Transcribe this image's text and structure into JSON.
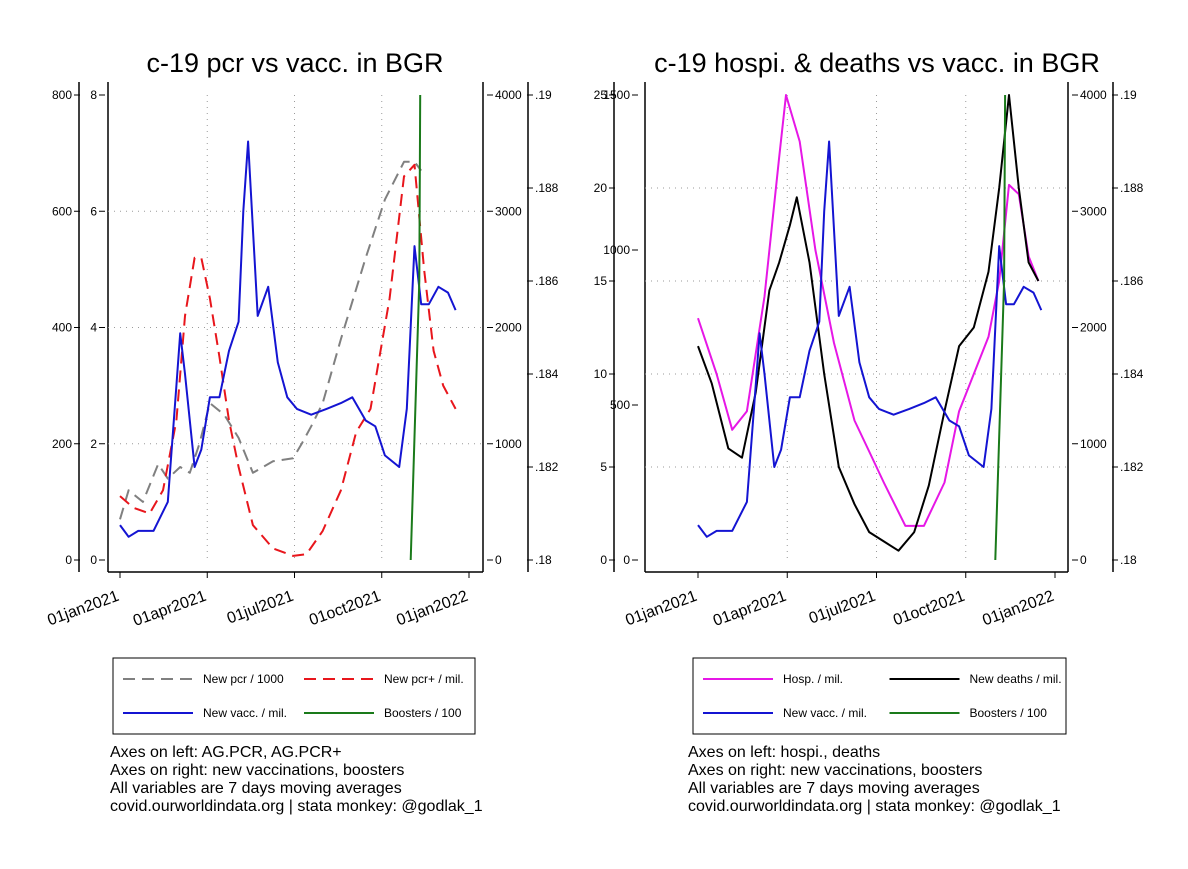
{
  "chart_data": [
    {
      "type": "line",
      "title": "c-19 pcr vs vacc. in BGR",
      "x_ticks": [
        "01jan2021",
        "01apr2021",
        "01jul2021",
        "01oct2021",
        "01jan2022"
      ],
      "x_range": [
        "2021-01-01",
        "2022-01-01"
      ],
      "left_axes": [
        {
          "ticks": [
            "0",
            "200",
            "400",
            "600",
            "800"
          ],
          "range": [
            0,
            800
          ]
        },
        {
          "ticks": [
            "0",
            "2",
            "4",
            "6",
            "8"
          ],
          "range": [
            0,
            8
          ]
        }
      ],
      "right_axes": [
        {
          "ticks": [
            "0",
            "1000",
            "2000",
            "3000",
            "4000"
          ],
          "range": [
            0,
            4000
          ]
        },
        {
          "ticks": [
            ".18",
            ".182",
            ".184",
            ".186",
            ".188",
            ".19"
          ],
          "range": [
            0.18,
            0.19
          ]
        }
      ],
      "grid": true,
      "legend": {
        "position": "bottom",
        "entries": [
          {
            "label": "New pcr / 1000",
            "color": "#808080",
            "dash": true
          },
          {
            "label": "New pcr+ / mil.",
            "color": "#e8161c",
            "dash": true
          },
          {
            "label": "New vacc. / mil.",
            "color": "#1414d2",
            "dash": false
          },
          {
            "label": "Boosters / 100",
            "color": "#1a7a1a",
            "dash": false
          }
        ]
      },
      "notes": [
        "Axes on left: AG.PCR, AG.PCR+",
        "Axes on right: new vaccinations, boosters",
        "All variables are 7 days moving averages",
        "covid.ourworldindata.org | stata monkey: @godlak_1"
      ],
      "series": [
        {
          "name": "New pcr / 1000",
          "axis": "left-outer",
          "color": "#808080",
          "dash": true,
          "x": [
            "2021-01-01",
            "2021-01-10",
            "2021-01-25",
            "2021-02-10",
            "2021-02-20",
            "2021-03-05",
            "2021-03-15",
            "2021-03-25",
            "2021-04-05",
            "2021-04-20",
            "2021-05-05",
            "2021-05-20",
            "2021-06-10",
            "2021-07-01",
            "2021-07-10",
            "2021-07-20",
            "2021-08-01",
            "2021-08-20",
            "2021-09-15",
            "2021-10-05",
            "2021-10-25",
            "2021-11-05",
            "2021-11-12"
          ],
          "y": [
            70,
            120,
            100,
            165,
            140,
            160,
            150,
            200,
            270,
            250,
            210,
            150,
            170,
            175,
            200,
            230,
            270,
            380,
            520,
            620,
            685,
            685,
            670
          ]
        },
        {
          "name": "New pcr+ / mil.",
          "axis": "left-inner",
          "color": "#e8161c",
          "dash": true,
          "x": [
            "2021-01-01",
            "2021-01-15",
            "2021-02-01",
            "2021-02-15",
            "2021-03-01",
            "2021-03-10",
            "2021-03-20",
            "2021-03-27",
            "2021-04-05",
            "2021-04-15",
            "2021-04-25",
            "2021-05-05",
            "2021-05-20",
            "2021-06-10",
            "2021-07-01",
            "2021-07-15",
            "2021-08-01",
            "2021-08-20",
            "2021-09-05",
            "2021-09-20",
            "2021-10-10",
            "2021-10-25",
            "2021-11-05",
            "2021-11-15",
            "2021-11-25",
            "2021-12-05",
            "2021-12-18"
          ],
          "y": [
            1.1,
            0.9,
            0.8,
            1.2,
            2.4,
            4.2,
            5.2,
            5.2,
            4.5,
            3.5,
            2.4,
            1.6,
            0.6,
            0.2,
            0.07,
            0.1,
            0.5,
            1.2,
            2.2,
            2.6,
            4.5,
            6.6,
            6.8,
            5.0,
            3.6,
            3.0,
            2.6
          ]
        },
        {
          "name": "New vacc. / mil.",
          "axis": "right-outer",
          "color": "#1414d2",
          "dash": false,
          "x": [
            "2021-01-01",
            "2021-01-10",
            "2021-01-20",
            "2021-02-05",
            "2021-02-20",
            "2021-03-01",
            "2021-03-05",
            "2021-03-10",
            "2021-03-20",
            "2021-03-27",
            "2021-04-05",
            "2021-04-15",
            "2021-04-25",
            "2021-05-05",
            "2021-05-10",
            "2021-05-15",
            "2021-05-25",
            "2021-06-05",
            "2021-06-15",
            "2021-06-25",
            "2021-07-05",
            "2021-07-20",
            "2021-08-05",
            "2021-08-20",
            "2021-09-01",
            "2021-09-15",
            "2021-09-25",
            "2021-10-05",
            "2021-10-20",
            "2021-10-28",
            "2021-11-05",
            "2021-11-12",
            "2021-11-20",
            "2021-11-30",
            "2021-12-10",
            "2021-12-18"
          ],
          "y": [
            300,
            200,
            250,
            250,
            500,
            1500,
            1950,
            1600,
            800,
            950,
            1400,
            1400,
            1800,
            2050,
            3000,
            3600,
            2100,
            2350,
            1700,
            1400,
            1300,
            1250,
            1300,
            1350,
            1400,
            1200,
            1150,
            900,
            800,
            1300,
            2700,
            2200,
            2200,
            2350,
            2300,
            2150
          ]
        },
        {
          "name": "Boosters / 100",
          "axis": "right-inner",
          "color": "#1a7a1a",
          "dash": false,
          "x": [
            "2021-11-01",
            "2021-11-10",
            "2021-11-11"
          ],
          "y": [
            0.18,
            0.186,
            0.19
          ]
        }
      ]
    },
    {
      "type": "line",
      "title": "c-19 hospi. & deaths vs vacc. in BGR",
      "x_ticks": [
        "01jan2021",
        "01apr2021",
        "01jul2021",
        "01oct2021",
        "01jan2022"
      ],
      "x_range": [
        "2021-01-01",
        "2022-01-01"
      ],
      "left_axes": [
        {
          "ticks": [
            "0",
            "5",
            "10",
            "15",
            "20",
            "25"
          ],
          "range": [
            0,
            25
          ]
        },
        {
          "ticks": [
            "0",
            "500",
            "1000",
            "1500"
          ],
          "range": [
            0,
            1500
          ]
        }
      ],
      "right_axes": [
        {
          "ticks": [
            "0",
            "1000",
            "2000",
            "3000",
            "4000"
          ],
          "range": [
            0,
            4000
          ]
        },
        {
          "ticks": [
            ".18",
            ".182",
            ".184",
            ".186",
            ".188",
            ".19"
          ],
          "range": [
            0.18,
            0.19
          ]
        }
      ],
      "grid": true,
      "legend": {
        "position": "bottom",
        "entries": [
          {
            "label": "Hosp. / mil.",
            "color": "#e617e6",
            "dash": false
          },
          {
            "label": "New deaths / mil.",
            "color": "#000000",
            "dash": false
          },
          {
            "label": "New vacc. / mil.",
            "color": "#1414d2",
            "dash": false
          },
          {
            "label": "Boosters / 100",
            "color": "#1a7a1a",
            "dash": false
          }
        ]
      },
      "notes": [
        "Axes on left: hospi., deaths",
        "Axes on right: new vaccinations, boosters",
        "All variables are 7 days moving averages",
        "covid.ourworldindata.org | stata monkey: @godlak_1"
      ],
      "series": [
        {
          "name": "Hosp. / mil.",
          "axis": "left-inner",
          "color": "#e617e6",
          "dash": false,
          "x": [
            "2021-01-01",
            "2021-01-20",
            "2021-02-05",
            "2021-02-20",
            "2021-03-10",
            "2021-03-25",
            "2021-04-01",
            "2021-04-15",
            "2021-05-01",
            "2021-05-20",
            "2021-06-10",
            "2021-06-25",
            "2021-07-10",
            "2021-08-01",
            "2021-08-20",
            "2021-09-10",
            "2021-09-25",
            "2021-10-10",
            "2021-10-25",
            "2021-11-05",
            "2021-11-15",
            "2021-11-25",
            "2021-12-05",
            "2021-12-15"
          ],
          "y": [
            780,
            600,
            420,
            480,
            850,
            1300,
            1500,
            1350,
            1000,
            700,
            450,
            350,
            250,
            110,
            110,
            250,
            480,
            600,
            720,
            900,
            1210,
            1180,
            980,
            900
          ]
        },
        {
          "name": "New deaths / mil.",
          "axis": "left-outer",
          "color": "#000000",
          "dash": false,
          "x": [
            "2021-01-01",
            "2021-01-15",
            "2021-02-01",
            "2021-02-15",
            "2021-03-01",
            "2021-03-15",
            "2021-03-25",
            "2021-04-05",
            "2021-04-12",
            "2021-04-25",
            "2021-05-10",
            "2021-05-25",
            "2021-06-10",
            "2021-06-25",
            "2021-07-10",
            "2021-07-25",
            "2021-08-10",
            "2021-08-25",
            "2021-09-10",
            "2021-09-25",
            "2021-10-10",
            "2021-10-25",
            "2021-11-05",
            "2021-11-15",
            "2021-11-25",
            "2021-12-05",
            "2021-12-15"
          ],
          "y": [
            11.5,
            9.5,
            6.0,
            5.5,
            9.0,
            14.5,
            16.0,
            18.0,
            19.5,
            16.0,
            10.0,
            5.0,
            3.0,
            1.5,
            1.0,
            0.5,
            1.5,
            4.0,
            8.0,
            11.5,
            12.5,
            15.5,
            20.0,
            25.0,
            20.0,
            16.0,
            15.0
          ]
        },
        {
          "name": "New vacc. / mil.",
          "axis": "right-outer",
          "color": "#1414d2",
          "dash": false,
          "x": [
            "2021-01-01",
            "2021-01-10",
            "2021-01-20",
            "2021-02-05",
            "2021-02-20",
            "2021-03-01",
            "2021-03-05",
            "2021-03-10",
            "2021-03-20",
            "2021-03-27",
            "2021-04-05",
            "2021-04-15",
            "2021-04-25",
            "2021-05-05",
            "2021-05-10",
            "2021-05-15",
            "2021-05-25",
            "2021-06-05",
            "2021-06-15",
            "2021-06-25",
            "2021-07-05",
            "2021-07-20",
            "2021-08-05",
            "2021-08-20",
            "2021-09-01",
            "2021-09-15",
            "2021-09-25",
            "2021-10-05",
            "2021-10-20",
            "2021-10-28",
            "2021-11-05",
            "2021-11-12",
            "2021-11-20",
            "2021-11-30",
            "2021-12-10",
            "2021-12-18"
          ],
          "y": [
            300,
            200,
            250,
            250,
            500,
            1500,
            1950,
            1600,
            800,
            950,
            1400,
            1400,
            1800,
            2050,
            3000,
            3600,
            2100,
            2350,
            1700,
            1400,
            1300,
            1250,
            1300,
            1350,
            1400,
            1200,
            1150,
            900,
            800,
            1300,
            2700,
            2200,
            2200,
            2350,
            2300,
            2150
          ]
        },
        {
          "name": "Boosters / 100",
          "axis": "right-inner",
          "color": "#1a7a1a",
          "dash": false,
          "x": [
            "2021-11-01",
            "2021-11-10",
            "2021-11-11"
          ],
          "y": [
            0.18,
            0.186,
            0.19
          ]
        }
      ]
    }
  ]
}
